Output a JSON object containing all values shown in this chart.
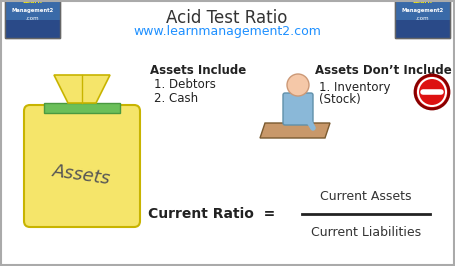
{
  "title": "Acid Test Ratio",
  "subtitle": "www.learnmanagement2.com",
  "subtitle_color": "#1E90FF",
  "title_color": "#333333",
  "background_color": "#FFFFFF",
  "border_color": "#AAAAAA",
  "assets_include_title": "Assets Include",
  "assets_include_items": [
    "1. Debtors",
    "2. Cash"
  ],
  "assets_dont_include_title": "Assets Don’t Include",
  "assets_dont_include_item1": "1. Inventory",
  "assets_dont_include_item2": "(Stock)",
  "formula_label": "Current Ratio  =",
  "formula_numerator": "Current Assets",
  "formula_denominator": "Current Liabilities",
  "bag_color": "#F5E56A",
  "bag_outline": "#C8B400",
  "bag_label": "Assets",
  "bag_label_color": "#555555",
  "bag_cap_color": "#6BBF59",
  "bag_cap_outline": "#4A9940",
  "funnel_color": "#F5E56A",
  "funnel_outline": "#C8B400",
  "stop_red": "#DD1111",
  "stop_outline": "#880000",
  "desk_color": "#C8986A",
  "desk_outline": "#7A5A30",
  "person_body_color": "#8AB8D8",
  "person_head_color": "#F5C8A8",
  "logo_bg": "#2244AA",
  "logo_text_color": "#FFEE00"
}
